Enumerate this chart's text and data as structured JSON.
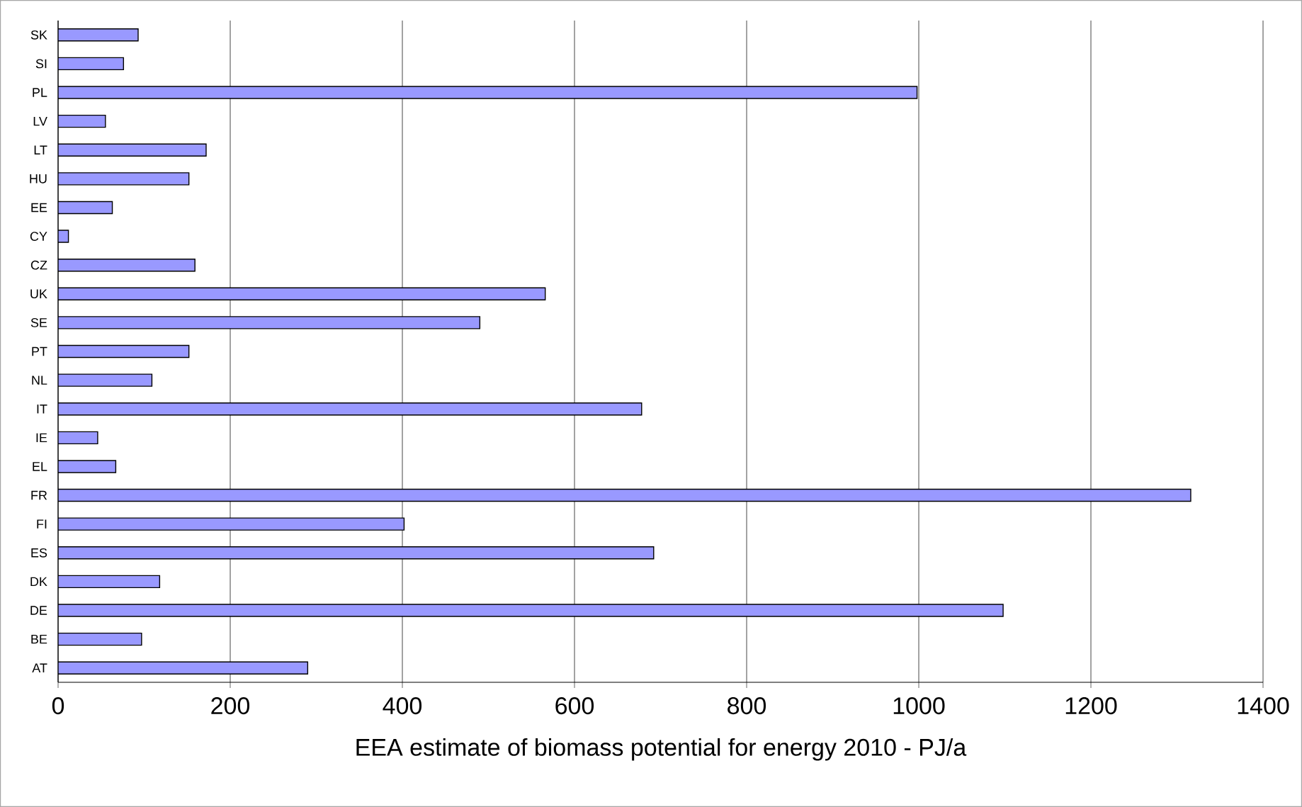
{
  "chart_data": {
    "type": "bar",
    "orientation": "horizontal",
    "xlabel": "EEA estimate of biomass potential for energy 2010 - PJ/a",
    "categories": [
      "SK",
      "SI",
      "PL",
      "LV",
      "LT",
      "HU",
      "EE",
      "CY",
      "CZ",
      "UK",
      "SE",
      "PT",
      "NL",
      "IT",
      "IE",
      "EL",
      "FR",
      "FI",
      "ES",
      "DK",
      "DE",
      "BE",
      "AT"
    ],
    "values": [
      93,
      76,
      998,
      55,
      172,
      152,
      63,
      12,
      159,
      566,
      490,
      152,
      109,
      678,
      46,
      67,
      1316,
      402,
      692,
      118,
      1098,
      97,
      290
    ],
    "color": "#9999ff",
    "xlim": [
      0,
      1400
    ],
    "xticks": [
      0,
      200,
      400,
      600,
      800,
      1000,
      1200,
      1400
    ],
    "grid": "x"
  }
}
